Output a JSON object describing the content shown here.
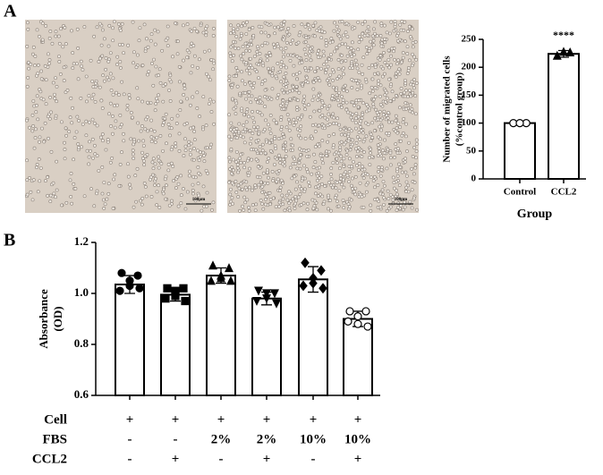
{
  "panels": [
    "A",
    "B"
  ],
  "images": [
    {
      "scale_bar": "100μm"
    },
    {
      "scale_bar": "100μm"
    }
  ],
  "chart_data": [
    {
      "type": "bar",
      "categories": [
        "Control",
        "CCL2"
      ],
      "values": [
        100,
        224
      ],
      "errors": [
        1,
        6
      ],
      "points": [
        [
          100,
          100,
          100
        ],
        [
          221,
          227,
          228
        ]
      ],
      "markers": [
        "open-circle",
        "triangle"
      ],
      "ylim": [
        0,
        250
      ],
      "yticks": [
        0,
        50,
        100,
        150,
        200,
        250
      ],
      "ylabel": [
        "Number of migrated cells",
        "(%control group)"
      ],
      "xlabel": "Group",
      "annotation": "****",
      "color": "#ffffff",
      "edge_color": "#000000"
    },
    {
      "type": "bar",
      "values": [
        1.035,
        0.995,
        1.07,
        0.98,
        1.055,
        0.9
      ],
      "errors": [
        0.035,
        0.025,
        0.03,
        0.025,
        0.05,
        0.03
      ],
      "points": [
        [
          1.08,
          1.07,
          1.03,
          1.01,
          1.02,
          1.05
        ],
        [
          1.02,
          1.02,
          1.01,
          0.98,
          0.97,
          0.99
        ],
        [
          1.11,
          1.1,
          1.07,
          1.05,
          1.05,
          1.06
        ],
        [
          1.01,
          1.0,
          1.0,
          0.97,
          0.96,
          0.98
        ],
        [
          1.12,
          1.09,
          1.06,
          1.03,
          1.02,
          1.04
        ],
        [
          0.93,
          0.93,
          0.91,
          0.89,
          0.87,
          0.88
        ]
      ],
      "markers": [
        "circle",
        "square",
        "triangle",
        "triangle-down",
        "diamond",
        "open-circle"
      ],
      "ylim": [
        0.6,
        1.2
      ],
      "yticks": [
        0.6,
        0.8,
        {
          "value": 1,
          "label": "1.0"
        },
        1.2
      ],
      "ylabel": [
        "Absorbance",
        "(OD)"
      ],
      "color": "#ffffff",
      "edge_color": "#000000",
      "table": [
        {
          "label": "Cell",
          "cells": [
            "+",
            "+",
            "+",
            "+",
            "+",
            "+"
          ]
        },
        {
          "label": "FBS",
          "cells": [
            "-",
            "-",
            "2%",
            "2%",
            "10%",
            "10%"
          ]
        },
        {
          "label": "CCL2",
          "cells": [
            "-",
            "+",
            "-",
            "+",
            "-",
            "+"
          ]
        }
      ]
    }
  ]
}
